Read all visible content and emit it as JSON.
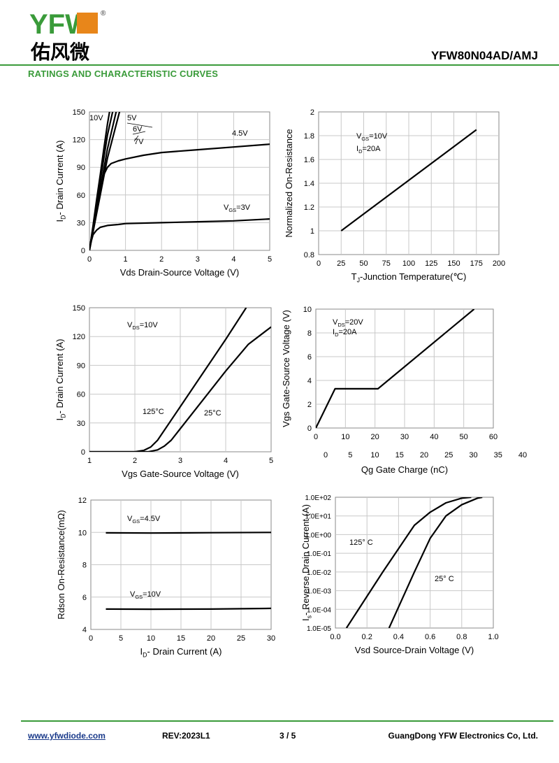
{
  "header": {
    "logo_letters": "YFW",
    "logo_cn": "佑风微",
    "logo_reg": "®",
    "part_number": "YFW80N04AD/AMJ",
    "section_title": "RATINGS AND CHARACTERISTIC CURVES",
    "colors": {
      "brand_green": "#3a9b3a",
      "logo_orange": "#e8861a"
    }
  },
  "footer": {
    "url": "www.yfwdiode.com",
    "rev": "REV:2023L1",
    "page": "3 / 5",
    "company": "GuangDong YFW Electronics Co, Ltd."
  },
  "chart_data": [
    {
      "type": "line",
      "xlabel": "Vds Drain-Source Voltage (V)",
      "ylabel": "ID- Drain Current (A)",
      "xlim": [
        0,
        5
      ],
      "ylim": [
        0,
        150
      ],
      "xticks": [
        "0",
        "1",
        "2",
        "3",
        "4",
        "5"
      ],
      "yticks": [
        "0",
        "30",
        "60",
        "90",
        "120",
        "150"
      ],
      "grid": true,
      "annotations": [
        "10V",
        "5V",
        "6V",
        "7V",
        "4.5V",
        "VGS=3V"
      ],
      "series": [
        {
          "name": "10V",
          "x": [
            0,
            0.1,
            0.2,
            0.3,
            0.4,
            0.5,
            0.6
          ],
          "y": [
            0,
            27,
            55,
            82,
            110,
            137,
            160
          ]
        },
        {
          "name": "7V",
          "x": [
            0,
            0.1,
            0.2,
            0.3,
            0.4,
            0.5,
            0.7
          ],
          "y": [
            0,
            25,
            50,
            75,
            100,
            125,
            160
          ]
        },
        {
          "name": "6V",
          "x": [
            0,
            0.1,
            0.2,
            0.3,
            0.4,
            0.5,
            0.8
          ],
          "y": [
            0,
            22,
            44,
            66,
            88,
            110,
            160
          ]
        },
        {
          "name": "5V",
          "x": [
            0,
            0.1,
            0.2,
            0.3,
            0.4,
            0.5,
            0.8,
            0.9
          ],
          "y": [
            0,
            20,
            40,
            60,
            80,
            100,
            145,
            160
          ]
        },
        {
          "name": "4.5V",
          "x": [
            0,
            0.1,
            0.2,
            0.3,
            0.4,
            0.5,
            0.6,
            0.8,
            1.0,
            1.5,
            2,
            3,
            4,
            5
          ],
          "y": [
            0,
            25,
            48,
            68,
            82,
            90,
            94,
            97,
            99,
            103,
            106,
            109,
            112,
            115
          ]
        },
        {
          "name": "3V",
          "x": [
            0,
            0.05,
            0.1,
            0.2,
            0.3,
            0.5,
            0.8,
            1,
            2,
            3,
            4,
            5
          ],
          "y": [
            0,
            10,
            17,
            22,
            25,
            27,
            28,
            29,
            30,
            31,
            32,
            34
          ]
        }
      ]
    },
    {
      "type": "line",
      "xlabel": "TJ-Junction Temperature(℃)",
      "ylabel": "Normalized On-Resistance",
      "xlim": [
        0,
        200
      ],
      "ylim": [
        0.8,
        2
      ],
      "xticks": [
        "0",
        "25",
        "50",
        "75",
        "100",
        "125",
        "150",
        "175",
        "200"
      ],
      "yticks": [
        "0.8",
        "1",
        "1.2",
        "1.4",
        "1.6",
        "1.8",
        "2"
      ],
      "grid": true,
      "annotations": [
        "VGS=10V",
        "ID=20A"
      ],
      "series": [
        {
          "x": [
            25,
            175
          ],
          "y": [
            1.0,
            1.85
          ]
        }
      ]
    },
    {
      "type": "line",
      "xlabel": "Vgs Gate-Source Voltage (V)",
      "ylabel": "ID- Drain Current (A)",
      "xlim": [
        1,
        5
      ],
      "ylim": [
        0,
        150
      ],
      "xticks": [
        "1",
        "2",
        "3",
        "4",
        "5"
      ],
      "yticks": [
        "0",
        "30",
        "60",
        "90",
        "120",
        "150"
      ],
      "grid": true,
      "annotations": [
        "VDS=10V",
        "125°C",
        "25°C"
      ],
      "series": [
        {
          "name": "125°C",
          "x": [
            1,
            2.0,
            2.2,
            2.35,
            2.5,
            3.0,
            3.5,
            4.0,
            4.45
          ],
          "y": [
            0,
            0,
            1.5,
            5,
            12,
            47,
            82,
            117,
            150
          ]
        },
        {
          "name": "25°C",
          "x": [
            1,
            2.3,
            2.5,
            2.65,
            2.8,
            3.5,
            4.0,
            4.5,
            5.0
          ],
          "y": [
            0,
            0,
            2,
            6,
            12,
            54,
            84,
            112,
            130
          ]
        }
      ]
    },
    {
      "type": "line",
      "xlabel": "Qg Gate Charge (nC)",
      "ylabel": "Vgs Gate-Source Voltage (V)",
      "xlim": [
        0,
        60
      ],
      "ylim": [
        0,
        10
      ],
      "xticks": [
        "0",
        "10",
        "20",
        "30",
        "40",
        "50",
        "60"
      ],
      "x2ticks": [
        "0",
        "5",
        "10",
        "15",
        "20",
        "25",
        "30",
        "35",
        "40"
      ],
      "yticks": [
        "0",
        "2",
        "4",
        "6",
        "8",
        "10"
      ],
      "grid": true,
      "annotations": [
        "VDS=20V",
        "ID=20A"
      ],
      "series": [
        {
          "x": [
            0,
            1,
            6.5,
            21,
            53.5
          ],
          "y": [
            0,
            0.5,
            3.3,
            3.3,
            10
          ]
        }
      ]
    },
    {
      "type": "line",
      "xlabel": "ID- Drain Current (A)",
      "ylabel": "Rdson On-Resistance(mΩ)",
      "xlim": [
        0,
        30
      ],
      "ylim": [
        4,
        12
      ],
      "xticks": [
        "0",
        "5",
        "10",
        "15",
        "20",
        "25",
        "30"
      ],
      "yticks": [
        "4",
        "6",
        "8",
        "10",
        "12"
      ],
      "grid": true,
      "annotations": [
        "VGS=4.5V",
        "VGS=10V"
      ],
      "series": [
        {
          "name": "VGS=4.5V",
          "x": [
            2.5,
            10,
            20,
            30
          ],
          "y": [
            9.97,
            9.96,
            9.98,
            10.0
          ]
        },
        {
          "name": "VGS=10V",
          "x": [
            2.5,
            10,
            20,
            30
          ],
          "y": [
            5.26,
            5.25,
            5.26,
            5.3
          ]
        }
      ]
    },
    {
      "type": "line",
      "xlabel": "Vsd Source-Drain Voltage (V)",
      "ylabel": "Is- Reverse Drain Current (A)",
      "xlim": [
        0,
        1
      ],
      "ylim": [
        -5,
        2
      ],
      "yscale": "log",
      "xticks": [
        "0.0",
        "0.2",
        "0.4",
        "0.6",
        "0.8",
        "1.0"
      ],
      "yticks": [
        "1.0E-05",
        "1.0E-04",
        "1.0E-03",
        "1.0E-02",
        "1.0E-01",
        "1.0E+00",
        "1.0E+01",
        "1.0E+02"
      ],
      "grid": true,
      "annotations": [
        "125° C",
        "25° C"
      ],
      "series": [
        {
          "name": "125° C",
          "x": [
            0.07,
            0.3,
            0.5,
            0.6,
            0.7,
            0.8,
            0.86
          ],
          "y": [
            -5,
            -2,
            0.5,
            1.2,
            1.7,
            1.95,
            2.0
          ]
        },
        {
          "name": "25° C",
          "x": [
            0.34,
            0.5,
            0.6,
            0.7,
            0.8,
            0.9,
            0.93
          ],
          "y": [
            -5,
            -2,
            -0.2,
            1.0,
            1.6,
            1.95,
            2.0
          ]
        }
      ]
    }
  ]
}
